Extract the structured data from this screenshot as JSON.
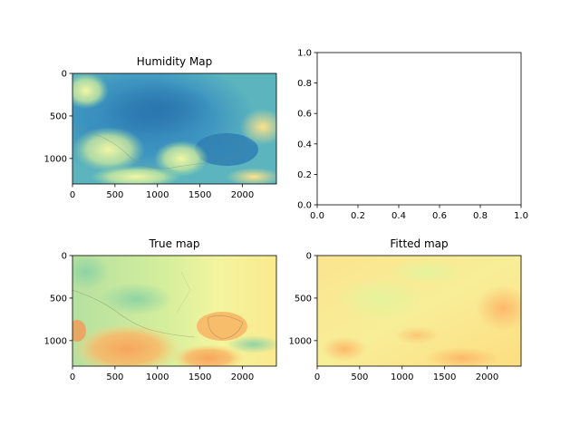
{
  "figure": {
    "background": "#ffffff"
  },
  "chart_data": [
    {
      "type": "heatmap",
      "title": "Humidity Map",
      "colormap": "Spectral",
      "image_extent_x": [
        0,
        2400
      ],
      "image_extent_y": [
        1300,
        0
      ],
      "xticks": [
        0,
        500,
        1000,
        1500,
        2000
      ],
      "yticks": [
        0,
        500,
        1000
      ],
      "xtick_labels": [
        "0",
        "500",
        "1000",
        "1500",
        "2000"
      ],
      "ytick_labels": [
        "0",
        "500",
        "1000"
      ],
      "dominant_colors": [
        "#3288bd",
        "#66c2a5",
        "#abdda4",
        "#e6f598",
        "#fee08b"
      ]
    },
    {
      "type": "empty",
      "title": "",
      "xlim": [
        0,
        1
      ],
      "ylim": [
        0,
        1
      ],
      "xticks": [
        0.0,
        0.2,
        0.4,
        0.6,
        0.8,
        1.0
      ],
      "yticks": [
        0.0,
        0.2,
        0.4,
        0.6,
        0.8,
        1.0
      ],
      "xtick_labels": [
        "0.0",
        "0.2",
        "0.4",
        "0.6",
        "0.8",
        "1.0"
      ],
      "ytick_labels": [
        "0.0",
        "0.2",
        "0.4",
        "0.6",
        "0.8",
        "1.0"
      ]
    },
    {
      "type": "heatmap",
      "title": "True map",
      "colormap": "Spectral",
      "image_extent_x": [
        0,
        2400
      ],
      "image_extent_y": [
        1300,
        0
      ],
      "xticks": [
        0,
        500,
        1000,
        1500,
        2000
      ],
      "yticks": [
        0,
        500,
        1000
      ],
      "xtick_labels": [
        "0",
        "500",
        "1000",
        "1500",
        "2000"
      ],
      "ytick_labels": [
        "0",
        "500",
        "1000"
      ],
      "dominant_colors": [
        "#abdda4",
        "#e6f598",
        "#fee08b",
        "#fdae61",
        "#f46d43"
      ]
    },
    {
      "type": "heatmap",
      "title": "Fitted map",
      "colormap": "Spectral",
      "image_extent_x": [
        0,
        2400
      ],
      "image_extent_y": [
        1300,
        0
      ],
      "xticks": [
        0,
        500,
        1000,
        1500,
        2000
      ],
      "yticks": [
        0,
        500,
        1000
      ],
      "xtick_labels": [
        "0",
        "500",
        "1000",
        "1500",
        "2000"
      ],
      "ytick_labels": [
        "0",
        "500",
        "1000"
      ],
      "dominant_colors": [
        "#e6f598",
        "#fee08b",
        "#fdd576",
        "#fdae61"
      ]
    }
  ]
}
